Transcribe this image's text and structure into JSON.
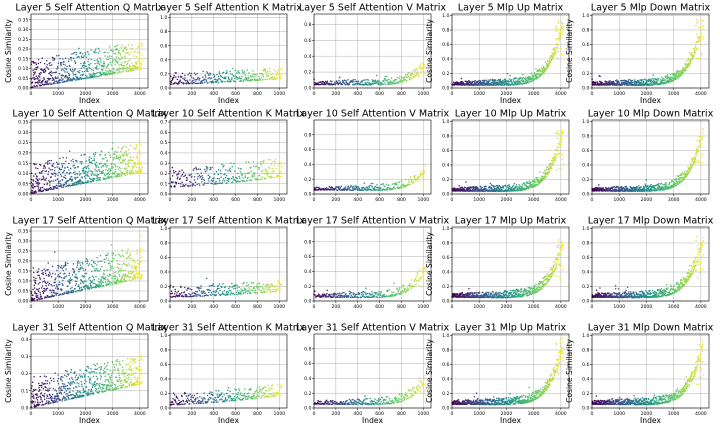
{
  "chart_data": {
    "type": "scatter",
    "rows": [
      5,
      10,
      17,
      31
    ],
    "colormap": [
      "#440154",
      "#3b528b",
      "#21918c",
      "#5ec962",
      "#fde725"
    ],
    "panels": [
      {
        "title": "Layer 5 Self Attention Q Matrix",
        "xlabel": "Index",
        "ylabel": "Cosine Similarity",
        "xlim": [
          0,
          4300
        ],
        "ylim": [
          0,
          0.38
        ],
        "xticks": [
          0,
          1000,
          2000,
          3000,
          4000
        ],
        "yticks": [
          0.0,
          0.05,
          0.1,
          0.15,
          0.2,
          0.25,
          0.3,
          0.35
        ],
        "n": 4096,
        "trend": "linear",
        "base": 0.025,
        "top": 0.12,
        "spread": 0.09
      },
      {
        "title": "Layer 5 Self Attention K Matrix",
        "xlabel": "Index",
        "ylabel": "",
        "xlim": [
          0,
          1070
        ],
        "ylim": [
          0,
          1.05
        ],
        "xticks": [
          0,
          200,
          400,
          600,
          800,
          1000
        ],
        "yticks": [
          0.0,
          0.2,
          0.4,
          0.6,
          0.8,
          1.0
        ],
        "n": 1024,
        "trend": "flat",
        "base": 0.08,
        "top": 0.16,
        "spread": 0.1
      },
      {
        "title": "Layer 5 Self Attention V Matrix",
        "xlabel": "",
        "ylabel": "",
        "xlim": [
          0,
          1070
        ],
        "ylim": [
          0,
          0.93
        ],
        "xticks": [
          0,
          200,
          400,
          600,
          800,
          1000
        ],
        "yticks": [
          0.0,
          0.2,
          0.4,
          0.6,
          0.8
        ],
        "n": 1024,
        "trend": "exp",
        "base": 0.05,
        "top": 0.3,
        "spread": 0.07
      },
      {
        "title": "Layer 5 Mlp Up Matrix",
        "xlabel": "Index",
        "ylabel": "Cosine Similarity",
        "xlim": [
          0,
          4300
        ],
        "ylim": [
          0,
          1.02
        ],
        "xticks": [
          0,
          1000,
          2000,
          3000,
          4000
        ],
        "yticks": [
          0.0,
          0.2,
          0.4,
          0.6,
          0.8,
          1.0
        ],
        "n": 4096,
        "trend": "exp",
        "base": 0.05,
        "top": 0.9,
        "spread": 0.08
      },
      {
        "title": "Layer 5 Mlp Down Matrix",
        "xlabel": "Index",
        "ylabel": "Cosine Similarity",
        "xlim": [
          0,
          4300
        ],
        "ylim": [
          0,
          1.02
        ],
        "xticks": [
          0,
          1000,
          2000,
          3000,
          4000
        ],
        "yticks": [
          0.0,
          0.2,
          0.4,
          0.6,
          0.8,
          1.0
        ],
        "n": 4096,
        "trend": "exp",
        "base": 0.05,
        "top": 0.9,
        "spread": 0.08
      },
      {
        "title": "Layer 10 Self Attention Q Matrix",
        "xlabel": "",
        "ylabel": "",
        "xlim": [
          0,
          4300
        ],
        "ylim": [
          0,
          0.36
        ],
        "xticks": [
          0,
          1000,
          2000,
          3000,
          4000
        ],
        "yticks": [
          0.0,
          0.05,
          0.1,
          0.15,
          0.2,
          0.25,
          0.3,
          0.35
        ],
        "n": 4096,
        "trend": "linear",
        "base": 0.025,
        "top": 0.13,
        "spread": 0.09
      },
      {
        "title": "Layer 10 Self Attention K Matrix",
        "xlabel": "",
        "ylabel": "",
        "xlim": [
          0,
          1070
        ],
        "ylim": [
          0,
          0.72
        ],
        "xticks": [
          0,
          200,
          400,
          600,
          800,
          1000
        ],
        "yticks": [
          0.0,
          0.1,
          0.2,
          0.3,
          0.4,
          0.5,
          0.6,
          0.7
        ],
        "n": 1024,
        "trend": "flat",
        "base": 0.1,
        "top": 0.2,
        "spread": 0.12
      },
      {
        "title": "Layer 10 Self Attention V Matrix",
        "xlabel": "",
        "ylabel": "",
        "xlim": [
          0,
          1070
        ],
        "ylim": [
          0,
          1.0
        ],
        "xticks": [
          0,
          200,
          400,
          600,
          800,
          1000
        ],
        "yticks": [
          0.0,
          0.2,
          0.4,
          0.6,
          0.8
        ],
        "n": 1024,
        "trend": "exp",
        "base": 0.06,
        "top": 0.35,
        "spread": 0.07
      },
      {
        "title": "Layer 10 Mlp Up Matrix",
        "xlabel": "",
        "ylabel": "",
        "xlim": [
          0,
          4300
        ],
        "ylim": [
          0,
          1.02
        ],
        "xticks": [
          0,
          1000,
          2000,
          3000,
          4000
        ],
        "yticks": [
          0.0,
          0.2,
          0.4,
          0.6,
          0.8,
          1.0
        ],
        "n": 4096,
        "trend": "exp",
        "base": 0.05,
        "top": 0.85,
        "spread": 0.08
      },
      {
        "title": "Layer 10 Mlp Down Matrix",
        "xlabel": "",
        "ylabel": "",
        "xlim": [
          0,
          4300
        ],
        "ylim": [
          0,
          1.02
        ],
        "xticks": [
          0,
          1000,
          2000,
          3000,
          4000
        ],
        "yticks": [
          0.0,
          0.2,
          0.4,
          0.6,
          0.8,
          1.0
        ],
        "n": 4096,
        "trend": "exp",
        "base": 0.05,
        "top": 0.85,
        "spread": 0.08
      },
      {
        "title": "Layer 17 Self Attention Q Matrix",
        "xlabel": "",
        "ylabel": "Cosine Similarity",
        "xlim": [
          0,
          4300
        ],
        "ylim": [
          0,
          0.37
        ],
        "xticks": [
          0,
          1000,
          2000,
          3000,
          4000
        ],
        "yticks": [
          0.0,
          0.05,
          0.1,
          0.15,
          0.2,
          0.25,
          0.3,
          0.35
        ],
        "n": 4096,
        "trend": "linear",
        "base": 0.025,
        "top": 0.14,
        "spread": 0.1
      },
      {
        "title": "Layer 17 Self Attention K Matrix",
        "xlabel": "",
        "ylabel": "",
        "xlim": [
          0,
          1070
        ],
        "ylim": [
          0,
          1.02
        ],
        "xticks": [
          0,
          200,
          400,
          600,
          800,
          1000
        ],
        "yticks": [
          0.0,
          0.2,
          0.4,
          0.6,
          0.8,
          1.0
        ],
        "n": 1024,
        "trend": "flat",
        "base": 0.08,
        "top": 0.16,
        "spread": 0.1
      },
      {
        "title": "Layer 17 Self Attention V Matrix",
        "xlabel": "",
        "ylabel": "",
        "xlim": [
          0,
          1070
        ],
        "ylim": [
          0,
          1.0
        ],
        "xticks": [
          0,
          200,
          400,
          600,
          800,
          1000
        ],
        "yticks": [
          0.0,
          0.2,
          0.4,
          0.6,
          0.8
        ],
        "n": 1024,
        "trend": "exp",
        "base": 0.06,
        "top": 0.45,
        "spread": 0.08
      },
      {
        "title": "Layer 17 Mlp Up Matrix",
        "xlabel": "",
        "ylabel": "Cosine Similarity",
        "xlim": [
          0,
          4300
        ],
        "ylim": [
          0,
          1.02
        ],
        "xticks": [
          0,
          1000,
          2000,
          3000,
          4000
        ],
        "yticks": [
          0.0,
          0.2,
          0.4,
          0.6,
          0.8,
          1.0
        ],
        "n": 4096,
        "trend": "exp",
        "base": 0.06,
        "top": 0.8,
        "spread": 0.09
      },
      {
        "title": "Layer 17 Mlp Down Matrix",
        "xlabel": "",
        "ylabel": "",
        "xlim": [
          0,
          4300
        ],
        "ylim": [
          0,
          1.02
        ],
        "xticks": [
          0,
          1000,
          2000,
          3000,
          4000
        ],
        "yticks": [
          0.0,
          0.2,
          0.4,
          0.6,
          0.8,
          1.0
        ],
        "n": 4096,
        "trend": "exp",
        "base": 0.06,
        "top": 0.85,
        "spread": 0.09
      },
      {
        "title": "Layer 31 Self Attention Q Matrix",
        "xlabel": "Index",
        "ylabel": "Cosine Similarity",
        "xlim": [
          0,
          4300
        ],
        "ylim": [
          0,
          0.43
        ],
        "xticks": [
          0,
          1000,
          2000,
          3000,
          4000
        ],
        "yticks": [
          0.0,
          0.1,
          0.2,
          0.3,
          0.4
        ],
        "n": 4096,
        "trend": "linear",
        "base": 0.03,
        "top": 0.17,
        "spread": 0.11
      },
      {
        "title": "Layer 31 Self Attention K Matrix",
        "xlabel": "Index",
        "ylabel": "",
        "xlim": [
          0,
          1070
        ],
        "ylim": [
          0,
          1.02
        ],
        "xticks": [
          0,
          200,
          400,
          600,
          800,
          1000
        ],
        "yticks": [
          0.0,
          0.2,
          0.4,
          0.6,
          0.8,
          1.0
        ],
        "n": 1024,
        "trend": "flat",
        "base": 0.07,
        "top": 0.2,
        "spread": 0.1
      },
      {
        "title": "Layer 31 Self Attention V Matrix",
        "xlabel": "Index",
        "ylabel": "",
        "xlim": [
          0,
          1070
        ],
        "ylim": [
          0,
          1.0
        ],
        "xticks": [
          0,
          200,
          400,
          600,
          800,
          1000
        ],
        "yticks": [
          0.0,
          0.2,
          0.4,
          0.6,
          0.8
        ],
        "n": 1024,
        "trend": "exp",
        "base": 0.06,
        "top": 0.4,
        "spread": 0.08
      },
      {
        "title": "Layer 31 Mlp Up Matrix",
        "xlabel": "Index",
        "ylabel": "Cosine Similarity",
        "xlim": [
          0,
          4300
        ],
        "ylim": [
          0,
          1.02
        ],
        "xticks": [
          0,
          1000,
          2000,
          3000,
          4000
        ],
        "yticks": [
          0.0,
          0.2,
          0.4,
          0.6,
          0.8,
          1.0
        ],
        "n": 4096,
        "trend": "exp",
        "base": 0.06,
        "top": 0.85,
        "spread": 0.09
      },
      {
        "title": "Layer 31 Mlp Down Matrix",
        "xlabel": "Index",
        "ylabel": "Cosine Similarity",
        "xlim": [
          0,
          4300
        ],
        "ylim": [
          0,
          1.02
        ],
        "xticks": [
          0,
          1000,
          2000,
          3000,
          4000
        ],
        "yticks": [
          0.0,
          0.2,
          0.4,
          0.6,
          0.8,
          1.0
        ],
        "n": 4096,
        "trend": "exp",
        "base": 0.06,
        "top": 0.85,
        "spread": 0.09
      }
    ]
  }
}
